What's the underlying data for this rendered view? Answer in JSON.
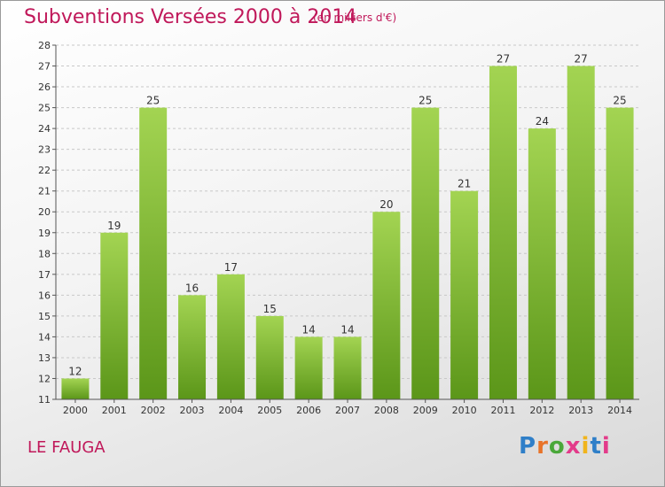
{
  "header": {
    "title": "Subventions Versées 2000 à 2014",
    "unit": "(en milliers d'€)"
  },
  "footer": {
    "place": "LE FAUGA",
    "logo_text": "Proxiti"
  },
  "colors": {
    "title": "#c0185a",
    "bar_top": "#9fd04e",
    "bar_bottom": "#5e9a1b",
    "grid": "#c8c8c8"
  },
  "chart_data": {
    "type": "bar",
    "title": "Subventions Versées 2000 à 2014",
    "subtitle": "(en milliers d'€)",
    "categories": [
      "2000",
      "2001",
      "2002",
      "2003",
      "2004",
      "2005",
      "2006",
      "2007",
      "2008",
      "2009",
      "2010",
      "2011",
      "2012",
      "2013",
      "2014"
    ],
    "values": [
      12,
      19,
      25,
      16,
      17,
      15,
      14,
      14,
      20,
      25,
      21,
      27,
      24,
      27,
      25
    ],
    "ylim": [
      11,
      28
    ],
    "yticks": [
      11,
      12,
      13,
      14,
      15,
      16,
      17,
      18,
      19,
      20,
      21,
      22,
      23,
      24,
      25,
      26,
      27,
      28
    ],
    "grid": true,
    "legend": "none"
  }
}
